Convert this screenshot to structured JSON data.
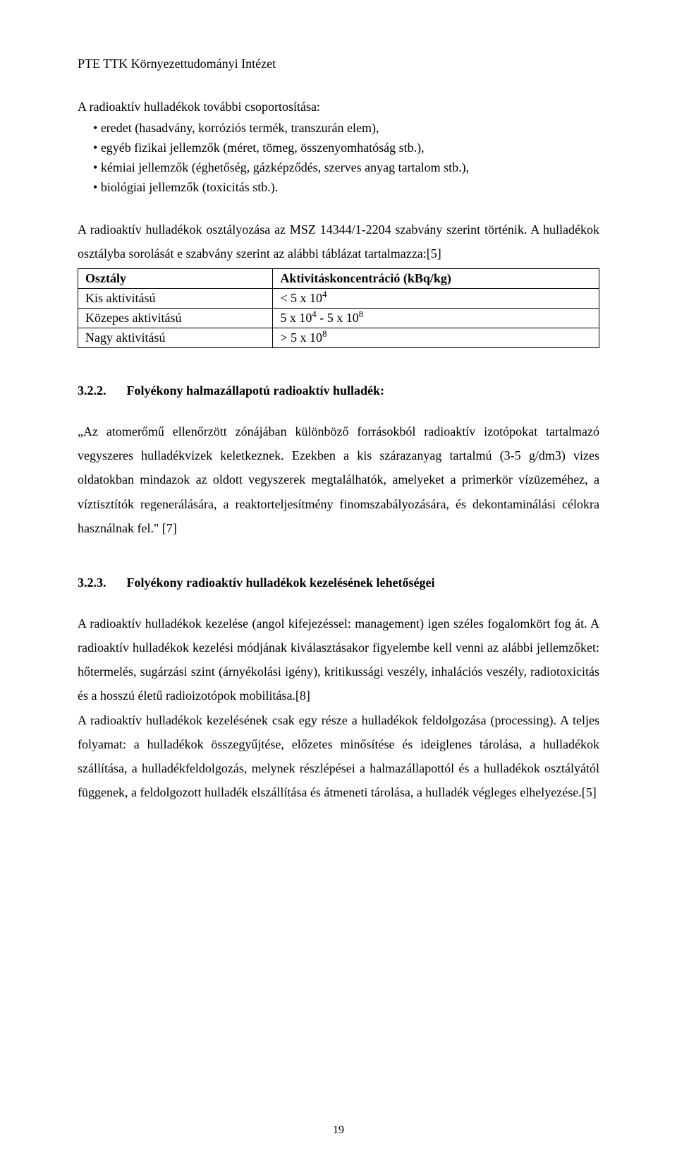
{
  "header": "PTE TTK Környezettudományi Intézet",
  "intro": "A radioaktív hulladékok további csoportosítása:",
  "bullets": [
    "eredet (hasadvány, korróziós termék, transzurán elem),",
    "egyéb fizikai jellemzők (méret, tömeg, összenyomhatóság stb.),",
    "kémiai jellemzők (éghetőség, gázképződés, szerves anyag tartalom stb.),",
    "biológiai jellemzők (toxicitás stb.)."
  ],
  "standard_text": "A radioaktív hulladékok osztályozása az MSZ 14344/1-2204 szabvány szerint történik. A hulladékok osztályba sorolását e szabvány szerint az alábbi táblázat tartalmazza:[5]",
  "table": {
    "header_col1": "Osztály",
    "header_col2": "Aktivitáskoncentráció (kBq/kg)",
    "rows": [
      {
        "class": "Kis aktivitású",
        "value_prefix": "< 5 x 10",
        "value_sup": "4",
        "value_suffix": ""
      },
      {
        "class": "Közepes aktivitású",
        "value_prefix": "5 x 10",
        "value_sup": "4",
        "value_mid": " - 5 x 10",
        "value_sup2": "8",
        "value_suffix": ""
      },
      {
        "class": "Nagy aktivitású",
        "value_prefix": "> 5 x 10",
        "value_sup": "8",
        "value_suffix": ""
      }
    ]
  },
  "section_322": {
    "number": "3.2.2.",
    "title": "Folyékony halmazállapotú radioaktív hulladék:"
  },
  "para_322": "„Az atomerőmű ellenőrzött zónájában különböző forrásokból radioaktív izotópokat tartalmazó vegyszeres hulladékvizek keletkeznek. Ezekben a kis szárazanyag tartalmú (3-5 g/dm3) vizes oldatokban mindazok az oldott vegyszerek megtalálhatók, amelyeket a primerkör vízüzeméhez, a víztisztítók regenerálására, a reaktorteljesítmény finomszabályozására, és dekontaminálási célokra használnak fel.\" [7]",
  "section_323": {
    "number": "3.2.3.",
    "title": "Folyékony radioaktív hulladékok kezelésének lehetőségei"
  },
  "para_323a": "A radioaktív hulladékok kezelése (angol kifejezéssel: management) igen széles fogalomkört fog át. A radioaktív hulladékok kezelési módjának kiválasztásakor figyelembe kell venni az alábbi jellemzőket: hőtermelés, sugárzási szint (árnyékolási igény), kritikussági veszély, inhalációs veszély, radiotoxicitás és a hosszú életű radioizotópok mobilitása.[8]",
  "para_323b": "A radioaktív hulladékok kezelésének csak egy része a hulladékok feldolgozása (processing). A teljes folyamat: a hulladékok összegyűjtése, előzetes minősítése és ideiglenes tárolása, a hulladékok szállítása, a hulladékfeldolgozás, melynek részlépései a halmazállapottól és a hulladékok osztályától függenek, a feldolgozott hulladék elszállítása és átmeneti tárolása, a hulladék végleges elhelyezése.[5]",
  "page_number": "19"
}
